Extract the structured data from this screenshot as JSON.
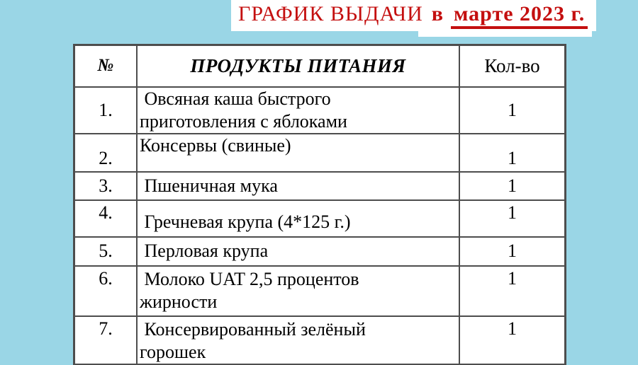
{
  "page": {
    "background_color": "#9ad6e6"
  },
  "title": {
    "prefix": "ГРАФИК ВЫДАЧИ",
    "middle": "в",
    "underlined": "марте 2023 г.",
    "text_color": "#c40f0f"
  },
  "table": {
    "headers": {
      "num": "№",
      "product": "ПРОДУКТЫ ПИТАНИЯ",
      "qty": "Кол-во"
    },
    "rows": [
      {
        "num": "1.",
        "product": " Овсяная каша быстрого\nприготовления с яблоками",
        "qty": "1"
      },
      {
        "num": "2.",
        "product": "Консервы (свиные)",
        "qty": "1"
      },
      {
        "num": "3.",
        "product": " Пшеничная мука",
        "qty": "1"
      },
      {
        "num": "4.",
        "product": " Гречневая крупа (4*125 г.)",
        "qty": "1"
      },
      {
        "num": "5.",
        "product": " Перловая крупа",
        "qty": "1"
      },
      {
        "num": "6.",
        "product": " Молоко UAT 2,5 процентов\nжирности",
        "qty": "1"
      },
      {
        "num": "7.",
        "product": " Консервированный зелёный\nгорошек",
        "qty": "1"
      }
    ]
  }
}
